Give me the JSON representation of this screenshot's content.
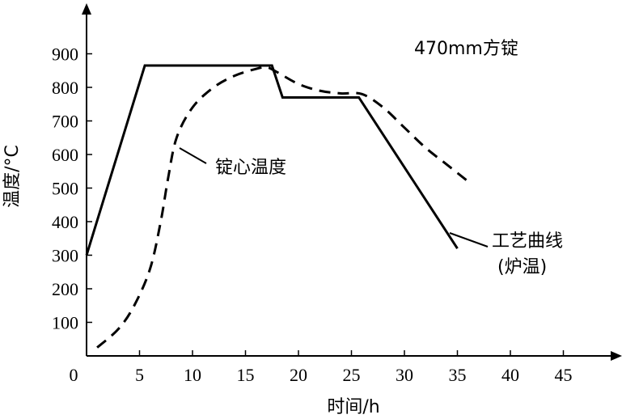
{
  "chart_data": {
    "type": "line",
    "title": "470mm方锭",
    "xlabel": "时间/h",
    "ylabel": "温度/°C",
    "xlim": [
      0,
      48
    ],
    "ylim": [
      0,
      1000
    ],
    "x_ticks": [
      0,
      5,
      10,
      15,
      20,
      25,
      30,
      35,
      40,
      45
    ],
    "y_ticks": [
      100,
      200,
      300,
      400,
      500,
      600,
      700,
      800,
      900
    ],
    "grid": false,
    "series": [
      {
        "name": "工艺曲线(炉温)",
        "style": "solid",
        "color": "#000000",
        "x": [
          0,
          5.5,
          17.5,
          18.5,
          25.7,
          35
        ],
        "y": [
          300,
          865,
          865,
          770,
          770,
          320
        ]
      },
      {
        "name": "锭心温度",
        "style": "dashed",
        "color": "#000000",
        "x": [
          1,
          3,
          4.5,
          6,
          7,
          7.7,
          8.5,
          10,
          12,
          14,
          16,
          17,
          18,
          20,
          22,
          24,
          26,
          28,
          30,
          32,
          34,
          36
        ],
        "y": [
          25,
          80,
          150,
          260,
          400,
          530,
          650,
          740,
          800,
          835,
          855,
          860,
          845,
          810,
          790,
          782,
          780,
          740,
          680,
          620,
          570,
          520
        ]
      }
    ],
    "annotations": [
      {
        "text": "锭心温度",
        "series": "锭心温度"
      },
      {
        "text_line1": "工艺曲线",
        "text_line2": "(炉温)",
        "series": "工艺曲线(炉温)"
      }
    ]
  }
}
